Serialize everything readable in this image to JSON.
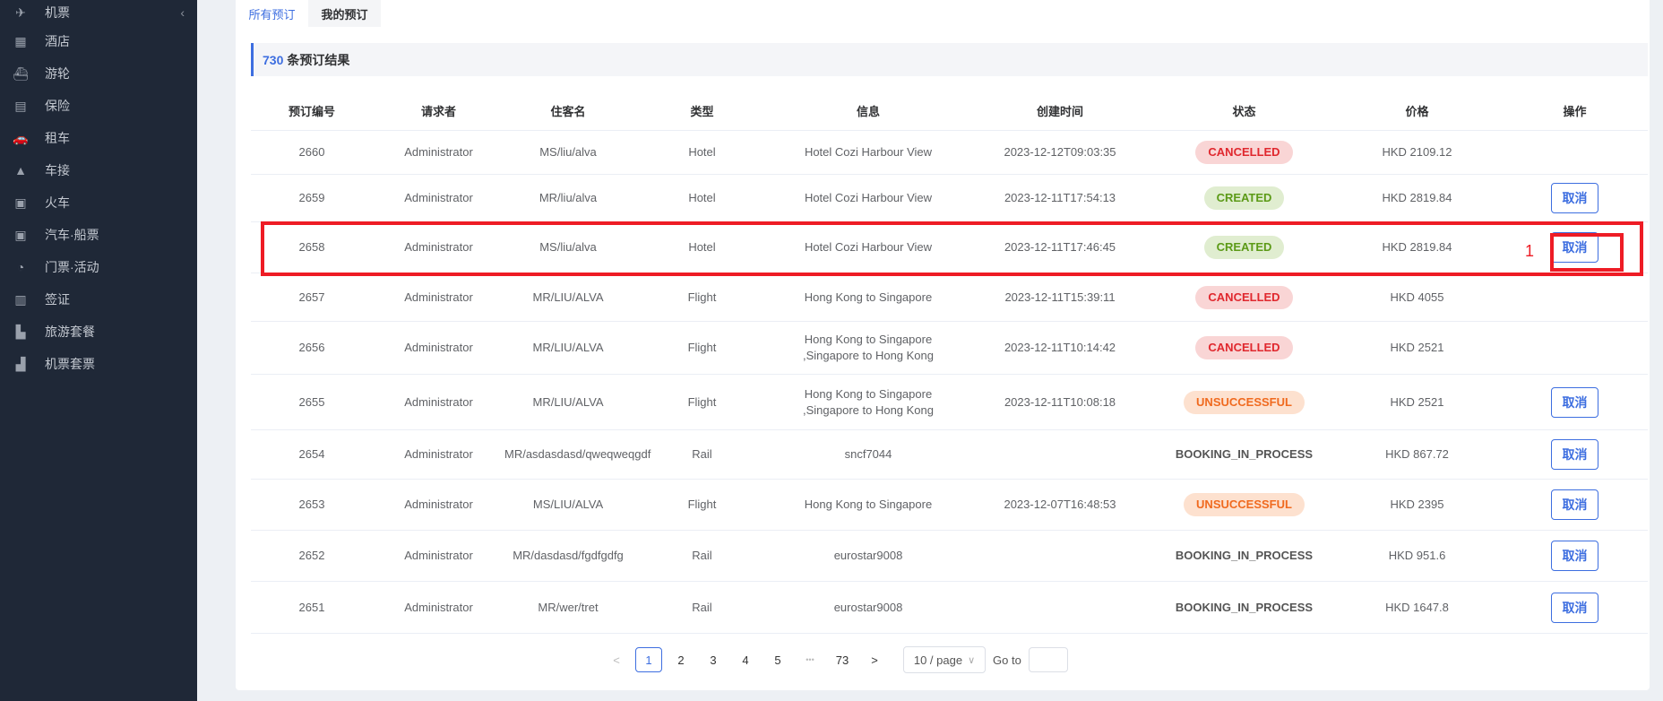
{
  "sidebar": {
    "items": [
      {
        "label": "机票",
        "icon": "plane-icon",
        "glyph": "✈"
      },
      {
        "label": "酒店",
        "icon": "hotel-icon",
        "glyph": "▦"
      },
      {
        "label": "游轮",
        "icon": "ship-icon",
        "glyph": "⛴"
      },
      {
        "label": "保险",
        "icon": "document-icon",
        "glyph": "▤"
      },
      {
        "label": "租车",
        "icon": "car-icon",
        "glyph": "🚗"
      },
      {
        "label": "车接",
        "icon": "taxi-icon",
        "glyph": "▲"
      },
      {
        "label": "火车",
        "icon": "train-icon",
        "glyph": "▣"
      },
      {
        "label": "汽车·船票",
        "icon": "bus-icon",
        "glyph": "▣"
      },
      {
        "label": "门票·活动",
        "icon": "gauge-icon",
        "glyph": "◔"
      },
      {
        "label": "签证",
        "icon": "passport-icon",
        "glyph": "▥"
      },
      {
        "label": "旅游套餐",
        "icon": "buildings-icon",
        "glyph": "▙"
      },
      {
        "label": "机票套票",
        "icon": "package-icon",
        "glyph": "▟"
      }
    ],
    "collapse_glyph": "‹"
  },
  "tabs": [
    {
      "label": "所有预订",
      "active": true
    },
    {
      "label": "我的预订",
      "active": false
    }
  ],
  "result": {
    "count": "730",
    "label": "条预订结果"
  },
  "table": {
    "headers": [
      "预订编号",
      "请求者",
      "住客名",
      "类型",
      "信息",
      "创建时间",
      "状态",
      "价格",
      "操作"
    ],
    "rows": [
      {
        "id": "2660",
        "requester": "Administrator",
        "guest": "MS/liu/alva",
        "type": "Hotel",
        "info": "Hotel Cozi Harbour View",
        "created": "2023-12-12T09:03:35",
        "status": "CANCELLED",
        "price": "HKD 2109.12",
        "action": ""
      },
      {
        "id": "2659",
        "requester": "Administrator",
        "guest": "MR/liu/alva",
        "type": "Hotel",
        "info": "Hotel Cozi Harbour View",
        "created": "2023-12-11T17:54:13",
        "status": "CREATED",
        "price": "HKD 2819.84",
        "action": "取消"
      },
      {
        "id": "2658",
        "requester": "Administrator",
        "guest": "MS/liu/alva",
        "type": "Hotel",
        "info": "Hotel Cozi Harbour View",
        "created": "2023-12-11T17:46:45",
        "status": "CREATED",
        "price": "HKD 2819.84",
        "action": "取消"
      },
      {
        "id": "2657",
        "requester": "Administrator",
        "guest": "MR/LIU/ALVA",
        "type": "Flight",
        "info": "Hong Kong to Singapore",
        "created": "2023-12-11T15:39:11",
        "status": "CANCELLED",
        "price": "HKD 4055",
        "action": ""
      },
      {
        "id": "2656",
        "requester": "Administrator",
        "guest": "MR/LIU/ALVA",
        "type": "Flight",
        "info": "Hong Kong to Singapore\n,Singapore to Hong Kong",
        "created": "2023-12-11T10:14:42",
        "status": "CANCELLED",
        "price": "HKD 2521",
        "action": ""
      },
      {
        "id": "2655",
        "requester": "Administrator",
        "guest": "MR/LIU/ALVA",
        "type": "Flight",
        "info": "Hong Kong to Singapore\n,Singapore to Hong Kong",
        "created": "2023-12-11T10:08:18",
        "status": "UNSUCCESSFUL",
        "price": "HKD 2521",
        "action": "取消"
      },
      {
        "id": "2654",
        "requester": "Administrator",
        "guest": "MR/asdasdasd/qweqweqgdf",
        "type": "Rail",
        "info": "sncf7044",
        "created": "",
        "status": "BOOKING_IN_PROCESS",
        "price": "HKD 867.72",
        "action": "取消"
      },
      {
        "id": "2653",
        "requester": "Administrator",
        "guest": "MS/LIU/ALVA",
        "type": "Flight",
        "info": "Hong Kong to Singapore",
        "created": "2023-12-07T16:48:53",
        "status": "UNSUCCESSFUL",
        "price": "HKD 2395",
        "action": "取消"
      },
      {
        "id": "2652",
        "requester": "Administrator",
        "guest": "MR/dasdasd/fgdfgdfg",
        "type": "Rail",
        "info": "eurostar9008",
        "created": "",
        "status": "BOOKING_IN_PROCESS",
        "price": "HKD 951.6",
        "action": "取消"
      },
      {
        "id": "2651",
        "requester": "Administrator",
        "guest": "MR/wer/tret",
        "type": "Rail",
        "info": "eurostar9008",
        "created": "",
        "status": "BOOKING_IN_PROCESS",
        "price": "HKD 1647.8",
        "action": "取消"
      }
    ]
  },
  "annotation": {
    "label": "1",
    "color": "#ee1c25"
  },
  "pagination": {
    "prev": "<",
    "pages": [
      "1",
      "2",
      "3",
      "4",
      "5"
    ],
    "ellipsis": "•••",
    "last": "73",
    "next": ">",
    "current": "1",
    "page_size": "10 / page",
    "goto_label": "Go to",
    "goto_value": ""
  },
  "colors": {
    "accent": "#3d6ee0",
    "sidebar": "#1f2837",
    "cancelled": "#e0282e",
    "created": "#5c9a17",
    "unsuccessful": "#f06a1f"
  }
}
